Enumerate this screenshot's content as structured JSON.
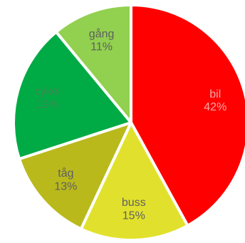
{
  "chart_data": {
    "type": "pie",
    "title": "",
    "slices": [
      {
        "category": "bil",
        "value": 42,
        "label": "42%",
        "color": "#ff0000",
        "label_color": "#f6a8a8"
      },
      {
        "category": "buss",
        "value": 15,
        "label": "15%",
        "color": "#e1e12d",
        "label_color": "#5f5f5f"
      },
      {
        "category": "tåg",
        "value": 13,
        "label": "13%",
        "color": "#b9b91c",
        "label_color": "#5f5f5f"
      },
      {
        "category": "cykel",
        "value": 19,
        "label": "19%",
        "color": "#00aa44",
        "label_color": "#3d8a55"
      },
      {
        "category": "gång",
        "value": 11,
        "label": "11%",
        "color": "#92d050",
        "label_color": "#5f5f5f"
      }
    ],
    "start_angle_deg": 0,
    "direction": "clockwise",
    "legend": "none"
  }
}
